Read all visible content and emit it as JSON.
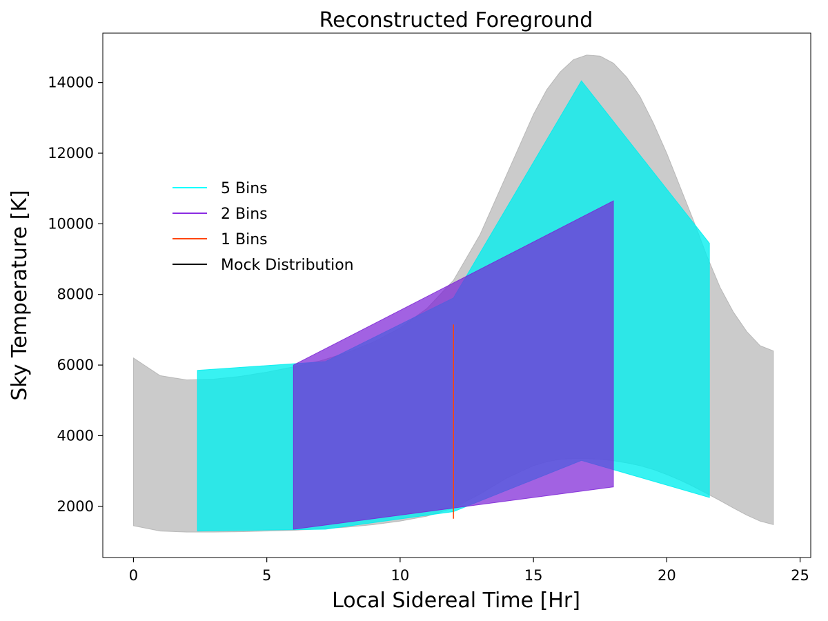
{
  "chart_data": {
    "type": "area",
    "title": "Reconstructed Foreground",
    "xlabel": "Local Sidereal Time [Hr]",
    "ylabel": "Sky Temperature [K]",
    "xlim": [
      -1.15,
      25.4
    ],
    "ylim": [
      550,
      15400
    ],
    "xticks": [
      0,
      5,
      10,
      15,
      20,
      25
    ],
    "yticks": [
      2000,
      4000,
      6000,
      8000,
      10000,
      12000,
      14000
    ],
    "xtick_labels": [
      "0",
      "5",
      "10",
      "15",
      "20",
      "25"
    ],
    "ytick_labels": [
      "2000",
      "4000",
      "6000",
      "8000",
      "10000",
      "12000",
      "14000"
    ],
    "grid": false,
    "legend": {
      "position": "center-left",
      "entries": [
        "5 Bins",
        "2 Bins",
        "1 Bins",
        "Mock Distribution"
      ]
    },
    "series": [
      {
        "name": "Mock Distribution",
        "color": "#000000",
        "fill": "#a6a6a6",
        "fill_opacity": 0.58,
        "x": [
          0,
          1,
          2,
          3,
          4,
          5,
          6,
          7,
          8,
          9,
          10,
          11,
          12,
          13,
          14,
          15,
          15.5,
          16,
          16.5,
          17,
          17.5,
          18,
          18.5,
          19,
          19.5,
          20,
          20.5,
          21,
          21.5,
          22,
          22.5,
          23,
          23.5,
          24
        ],
        "upper": [
          6200,
          5700,
          5580,
          5600,
          5680,
          5800,
          5950,
          6120,
          6350,
          6650,
          7050,
          7600,
          8400,
          9700,
          11400,
          13100,
          13800,
          14300,
          14650,
          14780,
          14750,
          14550,
          14150,
          13600,
          12850,
          12000,
          11050,
          10100,
          9100,
          8200,
          7500,
          6950,
          6550,
          6400
        ],
        "lower": [
          1450,
          1300,
          1270,
          1270,
          1280,
          1300,
          1320,
          1360,
          1410,
          1480,
          1580,
          1720,
          1950,
          2350,
          2800,
          3150,
          3260,
          3330,
          3350,
          3350,
          3330,
          3290,
          3230,
          3150,
          3040,
          2900,
          2740,
          2560,
          2360,
          2160,
          1950,
          1750,
          1580,
          1480
        ]
      },
      {
        "name": "5 Bins",
        "color": "#00ffff",
        "fill": "#00eeee",
        "fill_opacity": 0.78,
        "x": [
          2.4,
          7.2,
          12,
          16.8,
          21.6
        ],
        "upper": [
          5850,
          6100,
          7900,
          14050,
          9450
        ],
        "lower": [
          1300,
          1350,
          1850,
          3300,
          2250
        ]
      },
      {
        "name": "2 Bins",
        "color": "#8a2be2",
        "fill": "#7b1fd6",
        "fill_opacity": 0.7,
        "x": [
          6,
          18
        ],
        "upper": [
          6000,
          10650
        ],
        "lower": [
          1350,
          2550
        ]
      },
      {
        "name": "1 Bins",
        "color": "#ff4500",
        "x": [
          12,
          12
        ],
        "values": [
          1650,
          7150
        ]
      }
    ]
  }
}
